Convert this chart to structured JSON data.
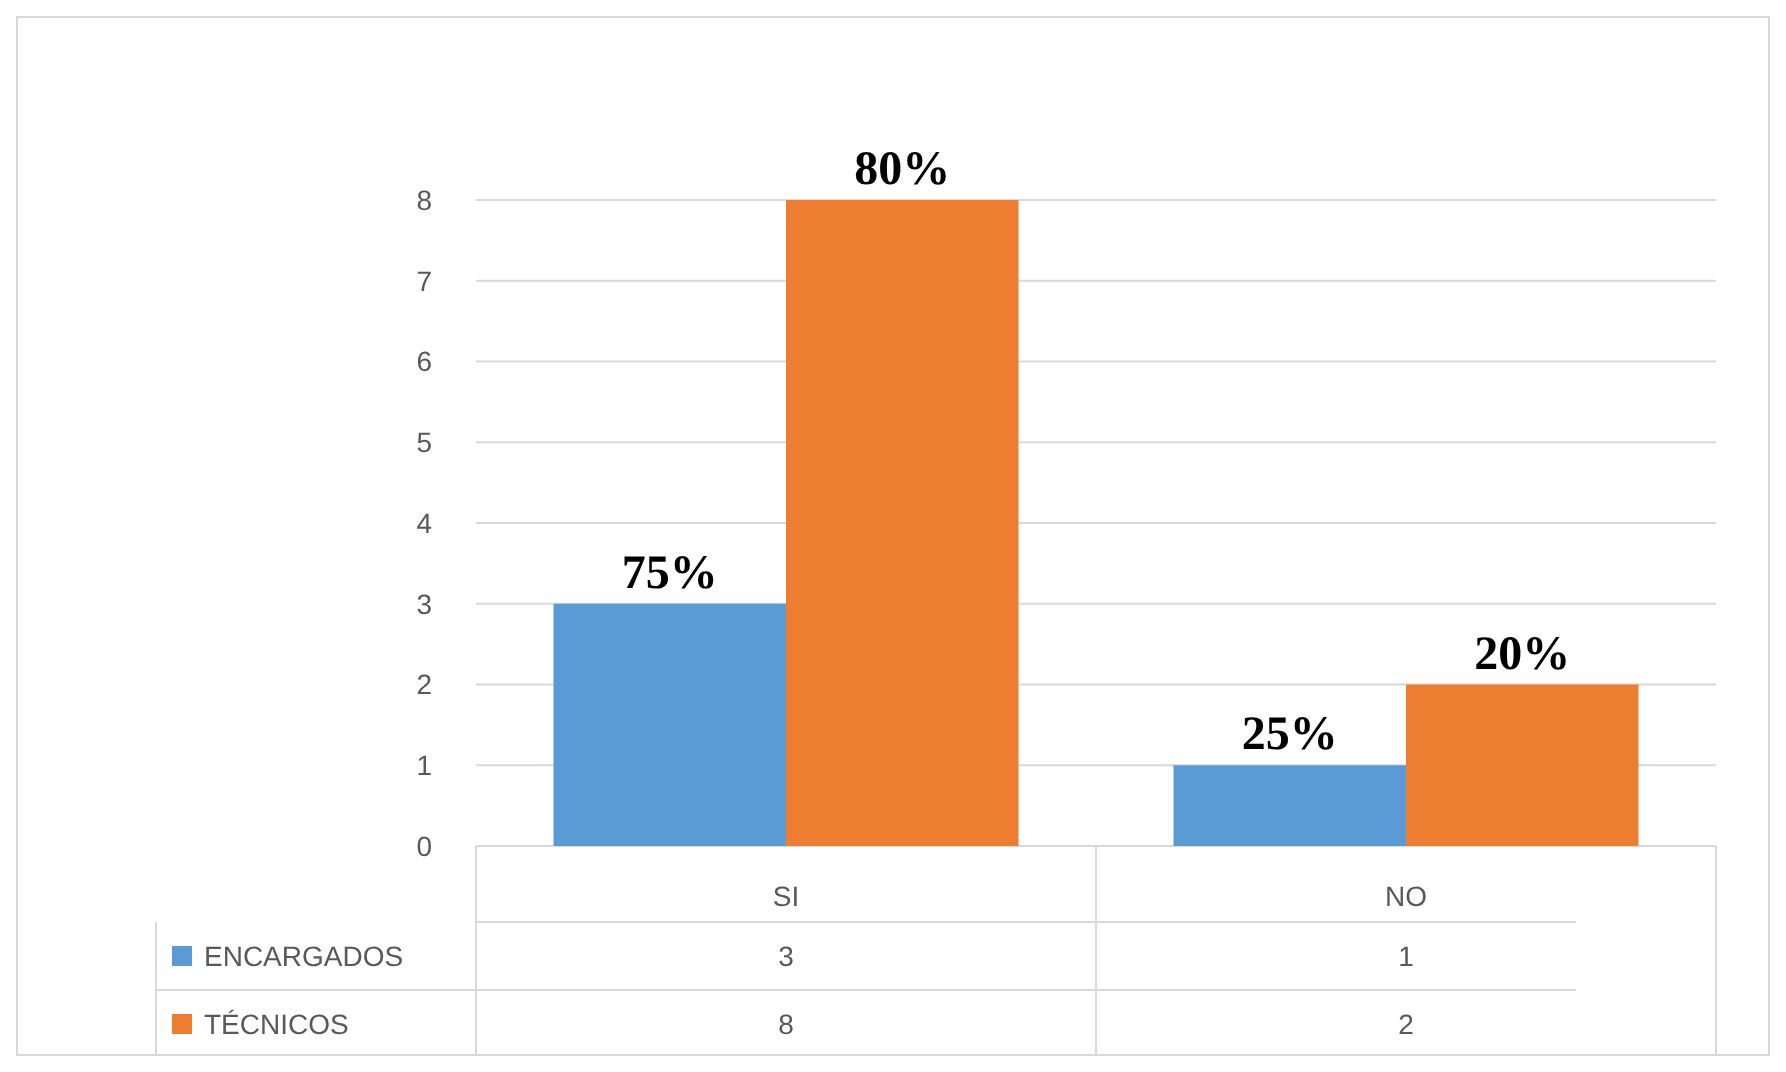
{
  "chart_data": {
    "type": "bar",
    "categories": [
      "SI",
      "NO"
    ],
    "series": [
      {
        "name": "ENCARGADOS",
        "color": "#5b9bd5",
        "values": [
          3,
          1
        ],
        "value_labels": [
          "3",
          "1"
        ]
      },
      {
        "name": "TÉCNICOS",
        "color": "#ed7d31",
        "values": [
          8,
          2
        ],
        "value_labels": [
          "8",
          "2"
        ]
      }
    ],
    "annotations": [
      {
        "text": "75%",
        "x": "SI",
        "y": 3
      },
      {
        "text": "80%",
        "x": "SI",
        "y": 8
      },
      {
        "text": "25%",
        "x": "NO",
        "y": 1
      },
      {
        "text": "20%",
        "x": "NO",
        "y": 2
      }
    ],
    "ylim": [
      0,
      8
    ],
    "yticks": [
      0,
      1,
      2,
      3,
      4,
      5,
      6,
      7,
      8
    ],
    "grid": "y",
    "legend": "bottom"
  }
}
